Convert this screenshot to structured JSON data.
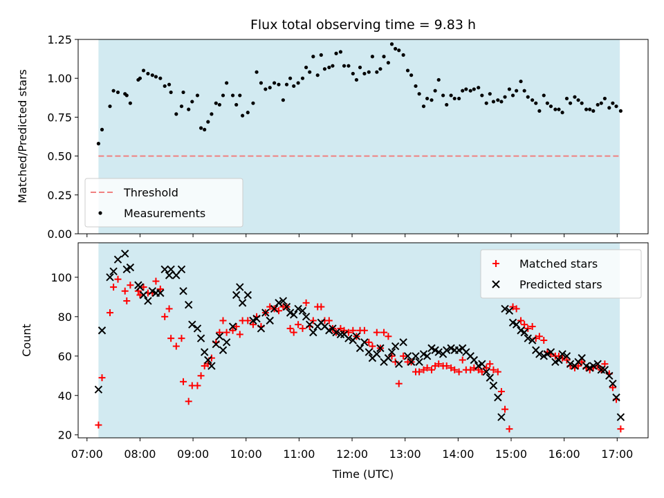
{
  "chart_data": {
    "title": "Flux total observing time = 9.83 h",
    "xlabel": "Time (UTC)",
    "x_ticks": [
      "07:00",
      "08:00",
      "09:00",
      "10:00",
      "11:00",
      "12:00",
      "13:00",
      "14:00",
      "15:00",
      "16:00",
      "17:00"
    ],
    "x_range": [
      "06:50",
      "17:35"
    ],
    "colors": {
      "shade": "#add8e6",
      "threshold": "#f08080",
      "matched": "#ff0000",
      "predicted": "#000000",
      "measurement": "#000000"
    },
    "panels": [
      {
        "type": "scatter",
        "ylabel": "Matched/Predicted stars",
        "ylim": [
          0,
          1.25
        ],
        "y_ticks": [
          "0.00",
          "0.25",
          "0.50",
          "0.75",
          "1.00",
          "1.25"
        ],
        "shaded_span": {
          "from": "07:13",
          "to": "17:03"
        },
        "threshold": {
          "name": "Threshold",
          "value": 0.5
        },
        "legend_position": "lower-left",
        "series": [
          {
            "name": "Measurements",
            "marker": "dot",
            "x": [
              "07:13",
              "07:17",
              "07:26",
              "07:30",
              "07:35",
              "07:43",
              "07:45",
              "07:49",
              "07:58",
              "07:60",
              "08:04",
              "08:09",
              "08:14",
              "08:18",
              "08:23",
              "08:28",
              "08:33",
              "08:35",
              "08:41",
              "08:47",
              "08:49",
              "08:55",
              "08:59",
              "09:05",
              "09:09",
              "09:13",
              "09:17",
              "09:21",
              "09:26",
              "09:30",
              "09:34",
              "09:38",
              "09:45",
              "09:49",
              "09:53",
              "09:56",
              "10:02",
              "10:08",
              "10:12",
              "10:17",
              "10:22",
              "10:27",
              "10:32",
              "10:37",
              "10:42",
              "10:46",
              "10:50",
              "10:54",
              "10:59",
              "11:04",
              "11:08",
              "11:12",
              "11:16",
              "11:21",
              "11:25",
              "11:29",
              "11:34",
              "11:38",
              "11:42",
              "11:47",
              "11:51",
              "11:56",
              "12:01",
              "12:05",
              "12:09",
              "12:14",
              "12:19",
              "12:23",
              "12:28",
              "12:32",
              "12:36",
              "12:41",
              "12:45",
              "12:49",
              "12:53",
              "12:58",
              "13:03",
              "13:07",
              "13:12",
              "13:16",
              "13:21",
              "13:25",
              "13:30",
              "13:34",
              "13:38",
              "13:43",
              "13:47",
              "13:52",
              "13:56",
              "14:01",
              "14:05",
              "14:09",
              "14:14",
              "14:18",
              "14:23",
              "14:27",
              "14:32",
              "14:36",
              "14:40",
              "14:45",
              "14:49",
              "14:53",
              "14:58",
              "15:02",
              "15:06",
              "15:11",
              "15:15",
              "15:19",
              "15:24",
              "15:28",
              "15:32",
              "15:37",
              "15:41",
              "15:45",
              "15:50",
              "15:54",
              "15:58",
              "16:03",
              "16:07",
              "16:12",
              "16:16",
              "16:20",
              "16:25",
              "16:29",
              "16:33",
              "16:38",
              "16:42",
              "16:46",
              "16:51",
              "16:55",
              "16:59",
              "17:04"
            ],
            "y": [
              0.58,
              0.67,
              0.82,
              0.92,
              0.91,
              0.9,
              0.89,
              0.84,
              0.99,
              1.0,
              1.05,
              1.03,
              1.02,
              1.01,
              1.0,
              0.95,
              0.96,
              0.91,
              0.77,
              0.82,
              0.91,
              0.8,
              0.85,
              0.89,
              0.68,
              0.67,
              0.72,
              0.77,
              0.84,
              0.83,
              0.89,
              0.97,
              0.89,
              0.83,
              0.89,
              0.76,
              0.78,
              0.84,
              1.04,
              0.97,
              0.93,
              0.94,
              0.97,
              0.96,
              0.86,
              0.96,
              1.0,
              0.95,
              0.97,
              1.0,
              1.07,
              1.04,
              1.14,
              1.02,
              1.15,
              1.06,
              1.07,
              1.08,
              1.16,
              1.17,
              1.08,
              1.08,
              1.03,
              0.99,
              1.07,
              1.03,
              1.04,
              1.14,
              1.04,
              1.06,
              1.14,
              1.1,
              1.22,
              1.19,
              1.18,
              1.15,
              1.05,
              1.02,
              0.95,
              0.9,
              0.82,
              0.87,
              0.86,
              0.92,
              0.99,
              0.89,
              0.83,
              0.89,
              0.87,
              0.87,
              0.92,
              0.93,
              0.92,
              0.93,
              0.94,
              0.89,
              0.84,
              0.9,
              0.85,
              0.86,
              0.85,
              0.88,
              0.93,
              0.89,
              0.92,
              0.98,
              0.92,
              0.88,
              0.86,
              0.84,
              0.79,
              0.89,
              0.84,
              0.82,
              0.8,
              0.8,
              0.78,
              0.87,
              0.84,
              0.88,
              0.86,
              0.84,
              0.8,
              0.8,
              0.79,
              0.83,
              0.84,
              0.87,
              0.81,
              0.84,
              0.82,
              0.79
            ]
          }
        ]
      },
      {
        "type": "scatter",
        "ylabel": "Count",
        "ylim": [
          18.5,
          117.5
        ],
        "y_ticks": [
          "20",
          "40",
          "60",
          "80",
          "100"
        ],
        "shaded_span": {
          "from": "07:13",
          "to": "17:03"
        },
        "legend_position": "upper-right",
        "series": [
          {
            "name": "Matched stars",
            "marker": "plus",
            "x": [
              "07:13",
              "07:17",
              "07:26",
              "07:30",
              "07:35",
              "07:43",
              "07:45",
              "07:49",
              "07:58",
              "07:60",
              "08:04",
              "08:09",
              "08:14",
              "08:18",
              "08:23",
              "08:28",
              "08:33",
              "08:35",
              "08:41",
              "08:47",
              "08:49",
              "08:55",
              "08:59",
              "09:05",
              "09:09",
              "09:13",
              "09:17",
              "09:21",
              "09:26",
              "09:30",
              "09:34",
              "09:38",
              "09:45",
              "09:49",
              "09:53",
              "09:56",
              "10:02",
              "10:08",
              "10:12",
              "10:17",
              "10:22",
              "10:27",
              "10:32",
              "10:37",
              "10:42",
              "10:46",
              "10:50",
              "10:54",
              "10:59",
              "11:04",
              "11:08",
              "11:12",
              "11:16",
              "11:21",
              "11:25",
              "11:29",
              "11:34",
              "11:38",
              "11:42",
              "11:47",
              "11:51",
              "11:56",
              "12:01",
              "12:05",
              "12:09",
              "12:14",
              "12:19",
              "12:23",
              "12:28",
              "12:32",
              "12:36",
              "12:41",
              "12:45",
              "12:49",
              "12:53",
              "12:58",
              "13:03",
              "13:07",
              "13:12",
              "13:16",
              "13:21",
              "13:25",
              "13:30",
              "13:34",
              "13:38",
              "13:43",
              "13:47",
              "13:52",
              "13:56",
              "14:01",
              "14:05",
              "14:09",
              "14:14",
              "14:18",
              "14:23",
              "14:27",
              "14:32",
              "14:36",
              "14:40",
              "14:45",
              "14:49",
              "14:53",
              "14:58",
              "15:02",
              "15:06",
              "15:11",
              "15:15",
              "15:19",
              "15:24",
              "15:28",
              "15:32",
              "15:37",
              "15:41",
              "15:45",
              "15:50",
              "15:54",
              "15:58",
              "16:03",
              "16:07",
              "16:12",
              "16:16",
              "16:20",
              "16:25",
              "16:29",
              "16:33",
              "16:38",
              "16:42",
              "16:46",
              "16:51",
              "16:55",
              "16:59",
              "17:04"
            ],
            "y": [
              25,
              49,
              82,
              95,
              99,
              93,
              88,
              96,
              93,
              91,
              95,
              92,
              92,
              98,
              94,
              80,
              84,
              69,
              65,
              69,
              47,
              37,
              45,
              45,
              50,
              55,
              56,
              59,
              67,
              72,
              78,
              72,
              73,
              75,
              71,
              78,
              78,
              76,
              80,
              75,
              82,
              85,
              84,
              83,
              85,
              85,
              74,
              72,
              76,
              74,
              87,
              75,
              78,
              85,
              85,
              78,
              78,
              74,
              72,
              74,
              73,
              72,
              73,
              70,
              73,
              73,
              67,
              65,
              72,
              64,
              72,
              70,
              60,
              57,
              46,
              60,
              57,
              57,
              52,
              52,
              53,
              54,
              53,
              55,
              56,
              55,
              55,
              54,
              53,
              52,
              58,
              53,
              53,
              54,
              53,
              52,
              54,
              56,
              53,
              52,
              42,
              33,
              23,
              85,
              84,
              78,
              76,
              74,
              75,
              69,
              70,
              68,
              62,
              61,
              60,
              60,
              59,
              58,
              55,
              54,
              55,
              57,
              54,
              53,
              54,
              55,
              53,
              56,
              51,
              44,
              38,
              23
            ]
          },
          {
            "name": "Predicted stars",
            "marker": "x",
            "x": [
              "07:13",
              "07:17",
              "07:26",
              "07:30",
              "07:35",
              "07:43",
              "07:45",
              "07:49",
              "07:58",
              "07:60",
              "08:04",
              "08:09",
              "08:14",
              "08:18",
              "08:23",
              "08:28",
              "08:33",
              "08:35",
              "08:41",
              "08:47",
              "08:49",
              "08:55",
              "08:59",
              "09:05",
              "09:09",
              "09:13",
              "09:17",
              "09:21",
              "09:26",
              "09:30",
              "09:34",
              "09:38",
              "09:45",
              "09:49",
              "09:53",
              "09:56",
              "10:02",
              "10:08",
              "10:12",
              "10:17",
              "10:22",
              "10:27",
              "10:32",
              "10:37",
              "10:42",
              "10:46",
              "10:50",
              "10:54",
              "10:59",
              "11:04",
              "11:08",
              "11:12",
              "11:16",
              "11:21",
              "11:25",
              "11:29",
              "11:34",
              "11:38",
              "11:42",
              "11:47",
              "11:51",
              "11:56",
              "12:01",
              "12:05",
              "12:09",
              "12:14",
              "12:19",
              "12:23",
              "12:28",
              "12:32",
              "12:36",
              "12:41",
              "12:45",
              "12:49",
              "12:53",
              "12:58",
              "13:03",
              "13:07",
              "13:12",
              "13:16",
              "13:21",
              "13:25",
              "13:30",
              "13:34",
              "13:38",
              "13:43",
              "13:47",
              "13:52",
              "13:56",
              "14:01",
              "14:05",
              "14:09",
              "14:14",
              "14:18",
              "14:23",
              "14:27",
              "14:32",
              "14:36",
              "14:40",
              "14:45",
              "14:49",
              "14:53",
              "14:58",
              "15:02",
              "15:06",
              "15:11",
              "15:15",
              "15:19",
              "15:24",
              "15:28",
              "15:32",
              "15:37",
              "15:41",
              "15:45",
              "15:50",
              "15:54",
              "15:58",
              "16:03",
              "16:07",
              "16:12",
              "16:16",
              "16:20",
              "16:25",
              "16:29",
              "16:33",
              "16:38",
              "16:42",
              "16:46",
              "16:51",
              "16:55",
              "16:59",
              "17:04"
            ],
            "y": [
              43,
              73,
              100,
              103,
              109,
              112,
              104,
              105,
              96,
              95,
              91,
              88,
              93,
              92,
              92,
              104,
              101,
              104,
              101,
              104,
              93,
              86,
              76,
              74,
              69,
              62,
              58,
              55,
              66,
              70,
              63,
              67,
              75,
              91,
              95,
              87,
              91,
              78,
              79,
              74,
              82,
              78,
              84,
              87,
              88,
              85,
              82,
              81,
              84,
              83,
              80,
              76,
              72,
              75,
              77,
              75,
              73,
              74,
              72,
              71,
              71,
              69,
              68,
              70,
              64,
              67,
              62,
              59,
              61,
              64,
              57,
              59,
              62,
              65,
              56,
              67,
              60,
              57,
              60,
              57,
              61,
              60,
              64,
              63,
              62,
              61,
              63,
              64,
              63,
              63,
              64,
              62,
              60,
              58,
              55,
              56,
              52,
              49,
              45,
              39,
              29,
              84,
              83,
              77,
              76,
              73,
              72,
              69,
              68,
              63,
              61,
              60,
              61,
              62,
              57,
              58,
              61,
              60,
              56,
              55,
              57,
              59,
              55,
              54,
              55,
              56,
              53,
              53,
              50,
              46,
              39,
              29
            ]
          }
        ]
      }
    ]
  }
}
